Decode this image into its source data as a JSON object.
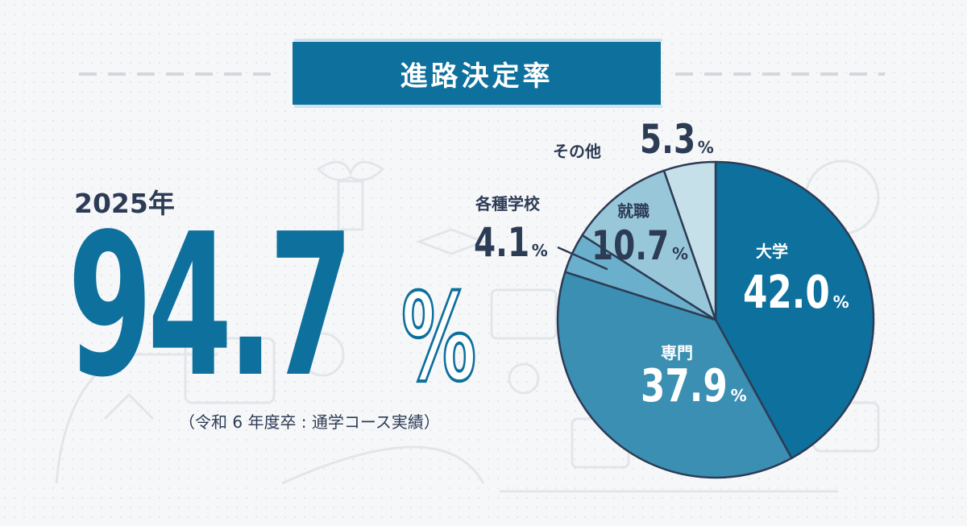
{
  "title": "進路決定率",
  "year": "2025年",
  "total_rate": "94.7",
  "percent_sign": "%",
  "note": "（令和 6 年度卒 : 通学コース実績）",
  "colors": {
    "accent": "#0e709c",
    "text_dark": "#2d3c55",
    "slice_university": "#0e709c",
    "slice_vocational": "#3a8fb3",
    "slice_misc_school": "#6ab0cc",
    "slice_employment": "#99c7da",
    "slice_other": "#c6e0ea",
    "outline": "#2d3c55"
  },
  "chart_data": {
    "type": "pie",
    "unit": "%",
    "slices": [
      {
        "label": "大学",
        "value": 42.0,
        "value_text": "42.0"
      },
      {
        "label": "専門",
        "value": 37.9,
        "value_text": "37.9"
      },
      {
        "label": "各種学校",
        "value": 4.1,
        "value_text": "4.1"
      },
      {
        "label": "就職",
        "value": 10.7,
        "value_text": "10.7"
      },
      {
        "label": "その他",
        "value": 5.3,
        "value_text": "5.3"
      }
    ]
  }
}
